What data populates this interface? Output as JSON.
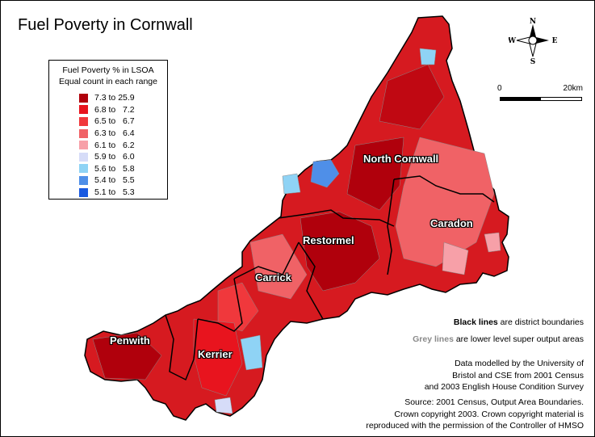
{
  "title": "Fuel Poverty in Cornwall",
  "legend": {
    "title_line1": "Fuel Poverty % in LSOA",
    "title_line2": "Equal count in each range",
    "items": [
      {
        "label": "7.3 to 25.9",
        "color": "#b0000c"
      },
      {
        "label": "6.8 to   7.2",
        "color": "#e8141e"
      },
      {
        "label": "6.5 to   6.7",
        "color": "#f0383c"
      },
      {
        "label": "6.3 to   6.4",
        "color": "#f06266"
      },
      {
        "label": "6.1 to   6.2",
        "color": "#f7a0a8"
      },
      {
        "label": "5.9 to   6.0",
        "color": "#d6dcf8"
      },
      {
        "label": "5.6 to   5.8",
        "color": "#8fd3f5"
      },
      {
        "label": "5.4 to   5.5",
        "color": "#4f8fe8"
      },
      {
        "label": "5.1 to   5.3",
        "color": "#1a5ae0"
      }
    ]
  },
  "compass": {
    "n": "N",
    "s": "S",
    "e": "E",
    "w": "W"
  },
  "scale": {
    "start": "0",
    "end": "20km"
  },
  "districts": {
    "north_cornwall": "North Cornwall",
    "caradon": "Caradon",
    "restormel": "Restormel",
    "carrick": "Carrick",
    "penwith": "Penwith",
    "kerrier": "Kerrier"
  },
  "notes": {
    "black_bold": "Black lines",
    "black_rest": " are district boundaries",
    "grey_bold": "Grey lines",
    "grey_rest": " are lower level super output areas",
    "data_1": "Data modelled by the University of",
    "data_2": "Bristol and CSE from 2001 Census",
    "data_3": "and 2003 English House Condition Survey",
    "source_1": "Source: 2001 Census, Output Area Boundaries.",
    "source_2": "Crown copyright 2003. Crown copyright material is",
    "source_3": "reproduced with the permission of the Controller of HMSO"
  }
}
